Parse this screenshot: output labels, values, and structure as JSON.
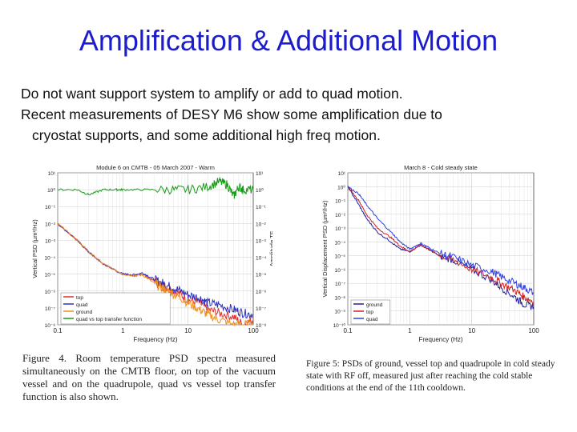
{
  "slide": {
    "title": "Amplification & Additional Motion",
    "bullets": [
      "Do not want support system to amplify or add to quad motion.",
      "Recent measurements of DESY M6 show some amplification due to",
      "cryostat supports, and some additional high freq motion."
    ]
  },
  "captions": {
    "left": "Figure 4. Room temperature PSD spectra measured simultaneously on the CMTB floor, on top of the vacuum vessel and on the quadrupole, quad vs vessel top transfer function is also shown.",
    "right": "Figure 5: PSDs of ground, vessel top and quadrupole in cold steady state with RF off, measured just after reaching the cold stable conditions at the end of the 11th cooldown."
  },
  "colors": {
    "title": "#1c1ccc",
    "top": "#e03030",
    "quad": "#3030c0",
    "ground": "#f0901c",
    "tf": "#1a9a1a",
    "ground5": "#2020a0",
    "top5": "#d02020",
    "quad5": "#3040e0"
  },
  "chart_data": [
    {
      "type": "line",
      "title": "Module 6 on CMTB - 05 March 2007 - Warm",
      "xlabel": "Frequency (Hz)",
      "ylabel": "Vertical PSD (µm²/Hz)",
      "ylabel_right": "Amplitude TF",
      "x_scale": "log",
      "y_scale": "log",
      "xlim": [
        0.1,
        100
      ],
      "ylim": [
        1e-08,
        10
      ],
      "ylim_right": [
        1e-08,
        10
      ],
      "xticks": [
        "0.1",
        "1",
        "10",
        "100"
      ],
      "yticks": [
        "10¹",
        "10⁰",
        "10⁻¹",
        "10⁻²",
        "10⁻³",
        "10⁻⁴",
        "10⁻⁵",
        "10⁻⁶",
        "10⁻⁷",
        "10⁻⁸"
      ],
      "legend": "bottom-left",
      "series": [
        {
          "name": "top",
          "color": "#e03030",
          "x": [
            0.1,
            0.2,
            0.3,
            0.5,
            1,
            1.5,
            2,
            3,
            4,
            5,
            7,
            10,
            15,
            20,
            30,
            50,
            70,
            100
          ],
          "y": [
            0.01,
            0.001,
            0.0002,
            4e-05,
            1e-05,
            8e-06,
            1e-05,
            4e-06,
            2e-06,
            1.5e-06,
            8e-07,
            3e-07,
            2e-07,
            8e-08,
            5e-08,
            3e-08,
            1e-08,
            2e-08
          ]
        },
        {
          "name": "quad",
          "color": "#3030c0",
          "x": [
            0.1,
            0.2,
            0.3,
            0.5,
            1,
            1.5,
            2,
            3,
            4,
            5,
            7,
            10,
            15,
            20,
            30,
            50,
            70,
            100
          ],
          "y": [
            0.01,
            0.001,
            0.0002,
            4e-05,
            1e-05,
            9e-06,
            1.2e-05,
            5e-06,
            3e-06,
            2e-06,
            1.2e-06,
            6e-07,
            4e-07,
            2e-07,
            1.5e-07,
            8e-08,
            5e-08,
            4e-08
          ]
        },
        {
          "name": "ground",
          "color": "#f0901c",
          "x": [
            0.1,
            0.2,
            0.3,
            0.5,
            1,
            1.5,
            2,
            3,
            4,
            5,
            7,
            10,
            15,
            20,
            30,
            50,
            70,
            100
          ],
          "y": [
            0.01,
            0.001,
            0.0002,
            4e-05,
            1e-05,
            8e-06,
            9e-06,
            3e-06,
            1.5e-06,
            1e-06,
            5e-07,
            2e-07,
            8e-08,
            4e-08,
            2e-08,
            1e-08,
            1e-08,
            1e-08
          ]
        },
        {
          "name": "quad vs top transfer function",
          "color": "#1a9a1a",
          "x": [
            0.1,
            0.2,
            0.3,
            0.5,
            0.8,
            1,
            2,
            5,
            10,
            20,
            30,
            40,
            50,
            60,
            70,
            100
          ],
          "y": [
            1,
            1,
            0.5,
            1,
            1,
            1,
            1,
            1,
            1,
            1.5,
            3,
            2,
            0.4,
            1.5,
            1,
            1
          ]
        }
      ]
    },
    {
      "type": "line",
      "title": "March 8 - Cold steady state",
      "xlabel": "Frequency (Hz)",
      "ylabel": "Vertical Displacement PSD (µm²/Hz)",
      "x_scale": "log",
      "y_scale": "log",
      "xlim": [
        0.1,
        100
      ],
      "ylim": [
        1e-10,
        10
      ],
      "xticks": [
        "0.1",
        "1",
        "10",
        "100"
      ],
      "yticks": [
        "10¹",
        "10⁰",
        "10⁻¹",
        "10⁻²",
        "10⁻³",
        "10⁻⁴",
        "10⁻⁵",
        "10⁻⁶",
        "10⁻⁷",
        "10⁻⁸",
        "10⁻⁹",
        "10⁻¹⁰"
      ],
      "legend": "bottom-left",
      "series": [
        {
          "name": "ground",
          "color": "#2020a0",
          "x": [
            0.1,
            0.15,
            0.2,
            0.3,
            0.5,
            0.7,
            1,
            1.5,
            2,
            3,
            5,
            10,
            20,
            30,
            50,
            70,
            100
          ],
          "y": [
            1,
            0.05,
            0.005,
            0.0005,
            0.0001,
            3e-05,
            2e-05,
            6e-05,
            3e-05,
            1e-05,
            5e-06,
            1e-06,
            2e-07,
            5e-08,
            1e-08,
            3e-09,
            2e-09
          ]
        },
        {
          "name": "top",
          "color": "#d02020",
          "x": [
            0.1,
            0.15,
            0.2,
            0.3,
            0.5,
            0.7,
            1,
            1.5,
            2,
            3,
            5,
            10,
            20,
            30,
            50,
            70,
            100
          ],
          "y": [
            1,
            0.1,
            0.01,
            0.001,
            0.0002,
            5e-05,
            2e-05,
            6e-05,
            3e-05,
            1e-05,
            5e-06,
            1e-06,
            3e-07,
            1e-07,
            3e-08,
            1e-08,
            5e-09
          ]
        },
        {
          "name": "quad",
          "color": "#3040e0",
          "x": [
            0.1,
            0.15,
            0.2,
            0.3,
            0.5,
            0.7,
            1,
            1.5,
            2,
            3,
            5,
            10,
            20,
            30,
            50,
            70,
            100
          ],
          "y": [
            1,
            0.3,
            0.05,
            0.005,
            0.0005,
            0.0001,
            3e-05,
            8e-05,
            4e-05,
            1.5e-05,
            8e-06,
            2e-06,
            8e-07,
            3e-07,
            1e-07,
            5e-08,
            2e-08
          ]
        }
      ]
    }
  ]
}
